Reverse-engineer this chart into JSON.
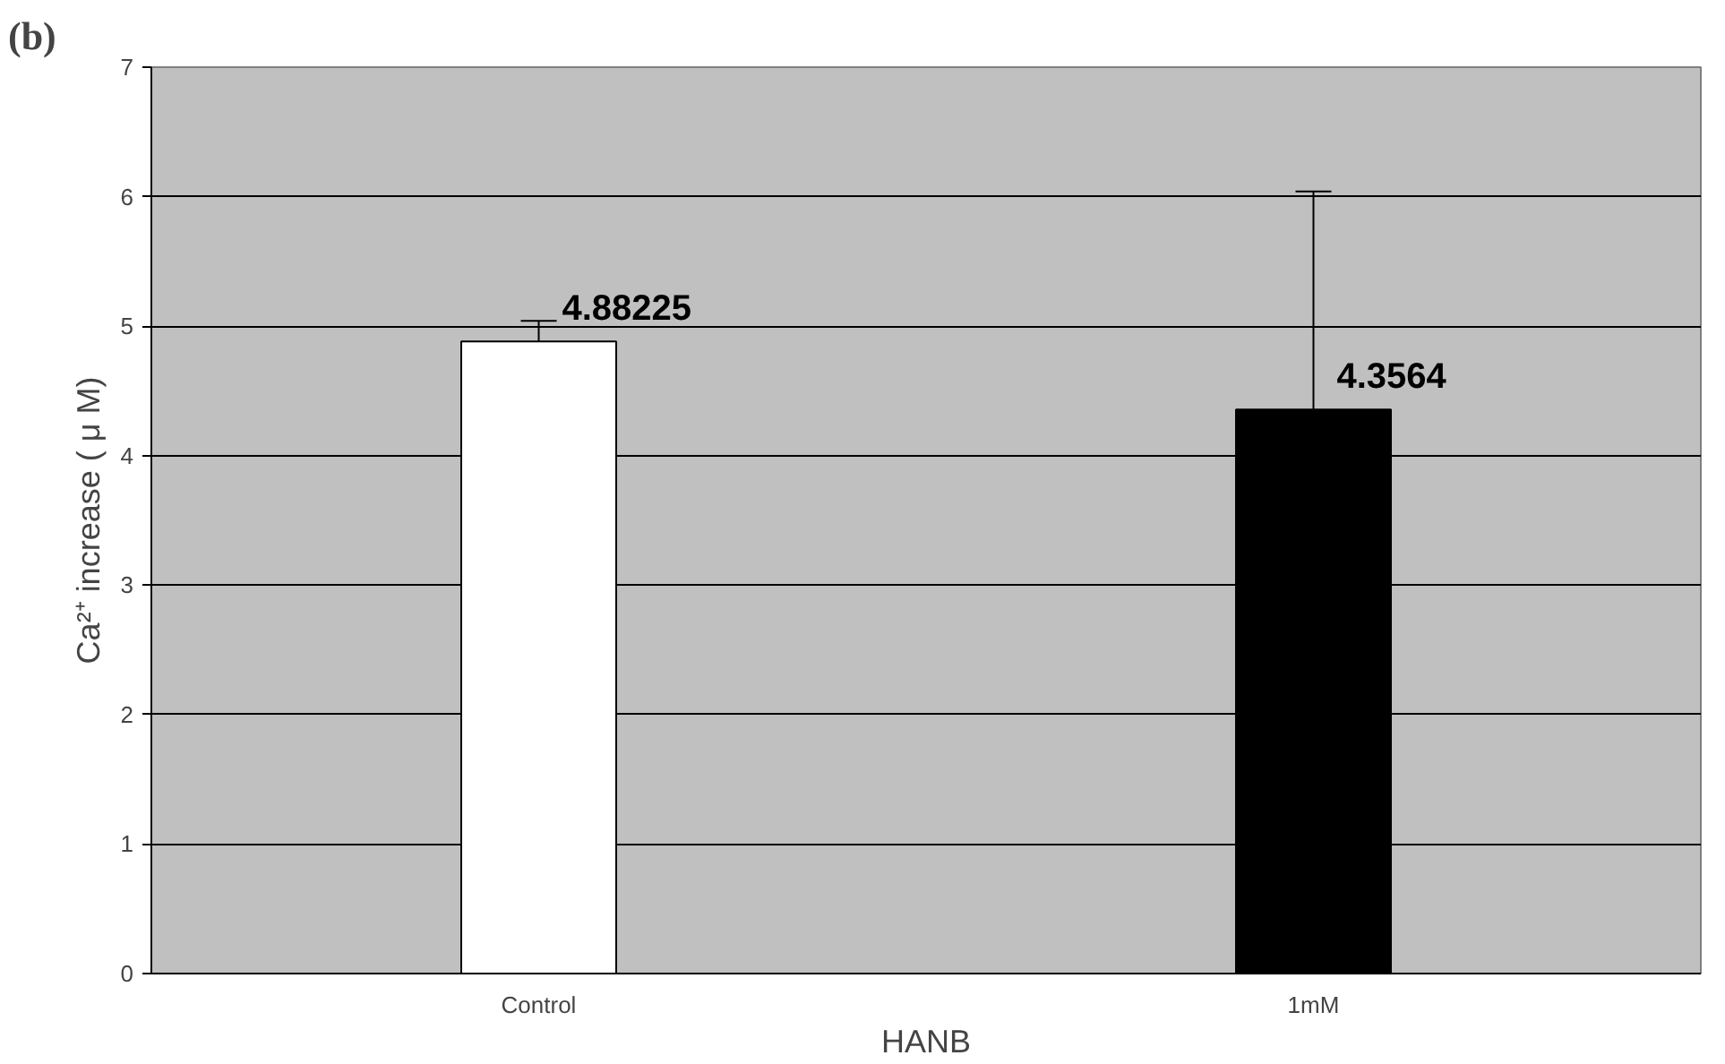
{
  "chart_data": {
    "type": "bar",
    "title": "(b)",
    "xlabel": "HANB",
    "ylabel": "Ca²⁺ increase ( μ M)",
    "categories": [
      "Control",
      "1mM"
    ],
    "values": [
      4.88225,
      4.3564
    ],
    "colors": [
      "#ffffff",
      "#000000"
    ],
    "errors": [
      [
        4.88225,
        5.04
      ],
      [
        4.3564,
        6.04
      ]
    ],
    "data_labels": true,
    "ylim": [
      0,
      7
    ],
    "yticks": [
      0,
      1,
      2,
      3,
      4,
      5,
      6,
      7
    ],
    "grid": "y"
  }
}
